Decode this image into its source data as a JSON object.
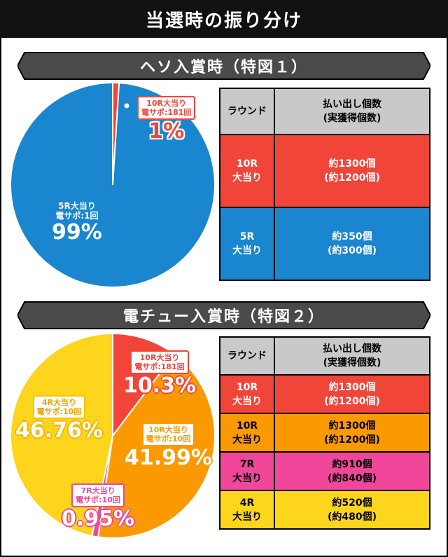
{
  "header": {
    "title": "当選時の振り分け"
  },
  "sections": [
    {
      "title": "ヘソ入賞時（特図１）",
      "table": {
        "headers": [
          "ラウンド",
          "払い出し個数\n(実獲得個数)"
        ],
        "rows": [
          {
            "round": "10R\n大当り",
            "payout": "約1300個\n(約1200個)",
            "color": "#f1453a"
          },
          {
            "round": "5R\n大当り",
            "payout": "約350個\n(約300個)",
            "color": "#1a86cf"
          }
        ]
      }
    },
    {
      "title": "電チュー入賞時（特図２）",
      "table": {
        "headers": [
          "ラウンド",
          "払い出し個数\n(実獲得個数)"
        ],
        "rows": [
          {
            "round": "10R\n大当り",
            "payout": "約1300個\n(約1200個)",
            "color": "#f1453a"
          },
          {
            "round": "10R\n大当り",
            "payout": "約1300個\n(約1200個)",
            "color": "#fb9a00"
          },
          {
            "round": "7R\n大当り",
            "payout": "約910個\n(約840個)",
            "color": "#f0479a"
          },
          {
            "round": "4R\n大当り",
            "payout": "約520個\n(約480個)",
            "color": "#fdd51c"
          }
        ]
      }
    }
  ],
  "chart_data": [
    {
      "type": "pie",
      "title": "ヘソ入賞時（特図１）",
      "slices": [
        {
          "label": "10R大当り\n電サポ:181回",
          "value": 1,
          "display": "1%",
          "color": "#f1453a"
        },
        {
          "label": "5R大当り\n電サポ:1回",
          "value": 99,
          "display": "99%",
          "color": "#1a86cf"
        }
      ]
    },
    {
      "type": "pie",
      "title": "電チュー入賞時（特図２）",
      "slices": [
        {
          "label": "10R大当り\n電サポ:181回",
          "value": 10.3,
          "display": "10.3%",
          "color": "#f1453a"
        },
        {
          "label": "10R大当り\n電サポ:10回",
          "value": 41.99,
          "display": "41.99%",
          "color": "#fb9a00"
        },
        {
          "label": "7R大当り\n電サポ:10回",
          "value": 0.95,
          "display": "0.95%",
          "color": "#f0479a"
        },
        {
          "label": "4R大当り\n電サポ:10回",
          "value": 46.76,
          "display": "46.76%",
          "color": "#fdd51c"
        }
      ]
    }
  ]
}
